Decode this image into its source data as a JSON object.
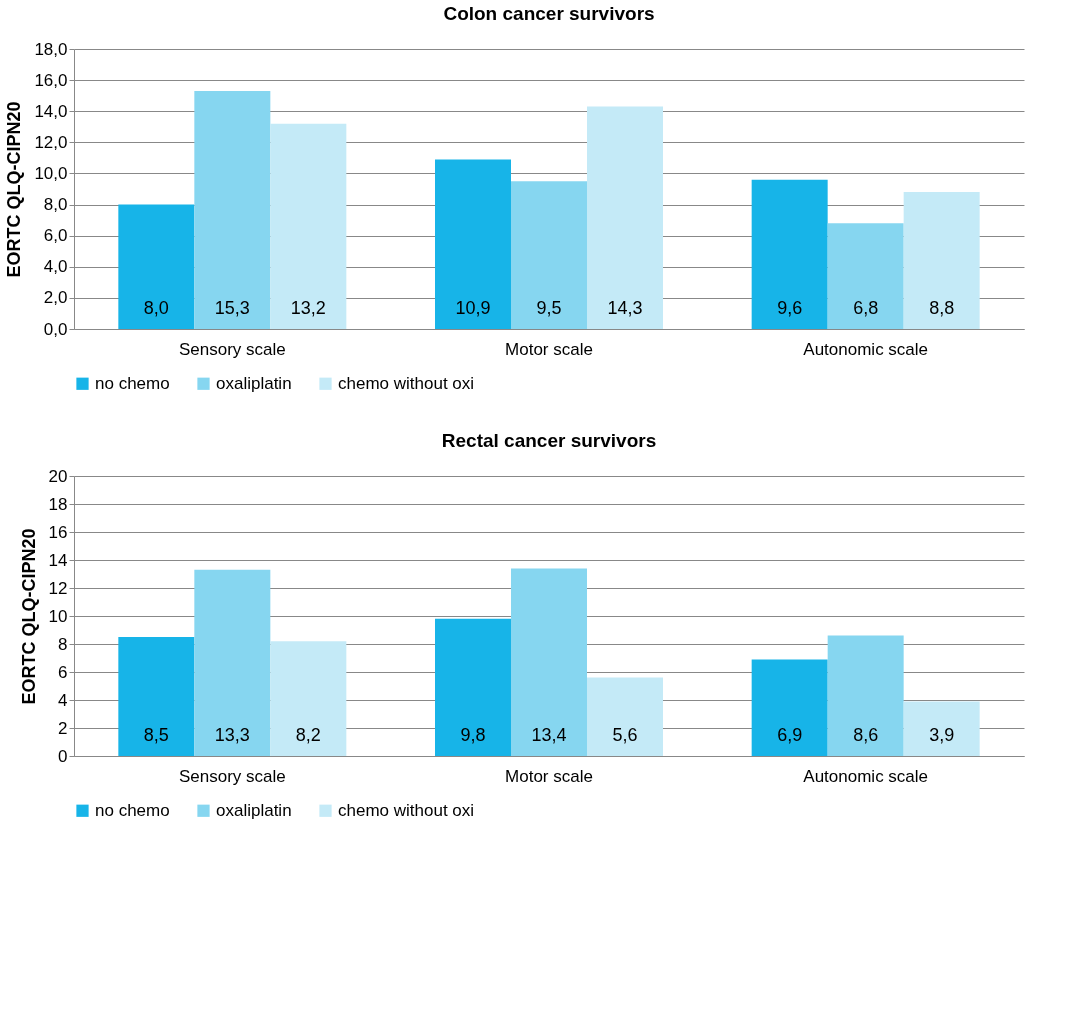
{
  "chart_data": [
    {
      "type": "bar",
      "title": "Colon cancer survivors",
      "ylabel": "EORTC QLQ-CIPN20",
      "categories": [
        "Sensory scale",
        "Motor scale",
        "Autonomic scale"
      ],
      "series": [
        {
          "name": "no chemo",
          "color": "#17b4e8",
          "values": [
            8.0,
            10.9,
            9.6
          ],
          "value_labels": [
            "8,0",
            "10,9",
            "9,6"
          ]
        },
        {
          "name": "oxaliplatin",
          "color": "#86d6f0",
          "values": [
            15.3,
            9.5,
            6.8
          ],
          "value_labels": [
            "15,3",
            "9,5",
            "6,8"
          ]
        },
        {
          "name": "chemo without oxi",
          "color": "#c4eaf7",
          "values": [
            13.2,
            14.3,
            8.8
          ],
          "value_labels": [
            "13,2",
            "14,3",
            "8,8"
          ]
        }
      ],
      "ylim": [
        0,
        18
      ],
      "yticks": [
        {
          "value": 0,
          "label": "0,0"
        },
        {
          "value": 2,
          "label": "2,0"
        },
        {
          "value": 4,
          "label": "4,0"
        },
        {
          "value": 6,
          "label": "6,0"
        },
        {
          "value": 8,
          "label": "8,0"
        },
        {
          "value": 10,
          "label": "10,0"
        },
        {
          "value": 12,
          "label": "12,0"
        },
        {
          "value": 14,
          "label": "14,0"
        },
        {
          "value": 16,
          "label": "16,0"
        },
        {
          "value": 18,
          "label": "18,0"
        }
      ],
      "grid": "y",
      "legend": "bottom"
    },
    {
      "type": "bar",
      "title": "Rectal cancer survivors",
      "ylabel": "EORTC QLQ-CIPN20",
      "categories": [
        "Sensory scale",
        "Motor scale",
        "Autonomic scale"
      ],
      "series": [
        {
          "name": "no chemo",
          "color": "#17b4e8",
          "values": [
            8.5,
            9.8,
            6.9
          ],
          "value_labels": [
            "8,5",
            "9,8",
            "6,9"
          ]
        },
        {
          "name": "oxaliplatin",
          "color": "#86d6f0",
          "values": [
            13.3,
            13.4,
            8.6
          ],
          "value_labels": [
            "13,3",
            "13,4",
            "8,6"
          ]
        },
        {
          "name": "chemo without oxi",
          "color": "#c4eaf7",
          "values": [
            8.2,
            5.6,
            3.9
          ],
          "value_labels": [
            "8,2",
            "5,6",
            "3,9"
          ]
        }
      ],
      "ylim": [
        0,
        20
      ],
      "yticks": [
        0,
        2,
        4,
        6,
        8,
        10,
        12,
        14,
        16,
        18,
        20
      ],
      "grid": "y",
      "legend": "bottom"
    }
  ]
}
